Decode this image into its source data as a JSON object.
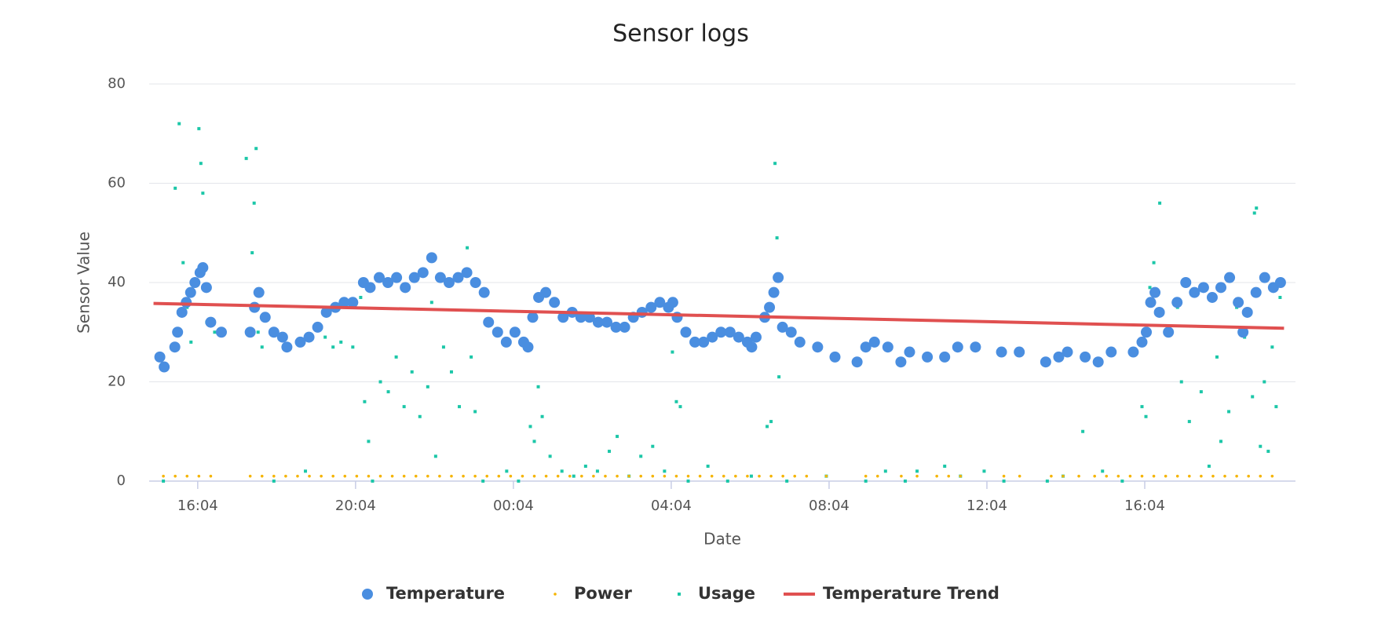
{
  "chart_data": {
    "type": "scatter",
    "title": "Sensor logs",
    "x_label": "Date",
    "y_label": "Sensor Value",
    "xlim": [
      14.84,
      43.89
    ],
    "ylim": [
      0,
      80
    ],
    "xticks": [
      {
        "value": 16.07,
        "label": "16:04"
      },
      {
        "value": 20.07,
        "label": "20:04"
      },
      {
        "value": 24.07,
        "label": "00:04"
      },
      {
        "value": 28.07,
        "label": "04:04"
      },
      {
        "value": 32.07,
        "label": "08:04"
      },
      {
        "value": 36.07,
        "label": "12:04"
      },
      {
        "value": 40.07,
        "label": "16:04"
      }
    ],
    "yticks": [
      0,
      20,
      40,
      60,
      80
    ],
    "grid": true,
    "legend": "bottom",
    "series": [
      {
        "name": "Temperature",
        "type": "scatter",
        "marker": "circle",
        "color": "#4a8ee0",
        "x": [
          15.11,
          15.22,
          15.49,
          15.56,
          15.67,
          15.78,
          15.89,
          16.0,
          16.13,
          16.2,
          16.29,
          16.4,
          16.67,
          17.4,
          17.51,
          17.62,
          17.78,
          18.0,
          18.22,
          18.33,
          18.67,
          18.89,
          19.11,
          19.33,
          19.56,
          19.78,
          20.0,
          20.27,
          20.44,
          20.67,
          20.89,
          21.11,
          21.33,
          21.56,
          21.78,
          22.0,
          22.22,
          22.44,
          22.67,
          22.89,
          23.11,
          23.33,
          23.44,
          23.67,
          23.89,
          24.11,
          24.33,
          24.44,
          24.56,
          24.71,
          24.89,
          25.11,
          25.33,
          25.56,
          25.78,
          26.0,
          26.22,
          26.44,
          26.67,
          26.89,
          27.11,
          27.33,
          27.56,
          27.78,
          28.0,
          28.11,
          28.22,
          28.44,
          28.67,
          28.89,
          29.11,
          29.33,
          29.56,
          29.78,
          30.0,
          30.11,
          30.22,
          30.44,
          30.56,
          30.67,
          30.78,
          30.89,
          31.11,
          31.33,
          31.78,
          32.22,
          32.78,
          33.0,
          33.22,
          33.56,
          33.89,
          34.11,
          34.56,
          35.0,
          35.33,
          35.78,
          36.44,
          36.89,
          37.56,
          37.89,
          38.11,
          38.56,
          38.89,
          39.22,
          39.78,
          40.0,
          40.11,
          40.22,
          40.33,
          40.44,
          40.67,
          40.89,
          41.11,
          41.33,
          41.56,
          41.78,
          42.0,
          42.22,
          42.44,
          42.56,
          42.67,
          42.89,
          43.11,
          43.33,
          43.51
        ],
        "values": [
          25,
          23,
          27,
          30,
          34,
          36,
          38,
          40,
          42,
          43,
          39,
          32,
          30,
          30,
          35,
          38,
          33,
          30,
          29,
          27,
          28,
          29,
          31,
          34,
          35,
          36,
          36,
          40,
          39,
          41,
          40,
          41,
          39,
          41,
          42,
          45,
          41,
          40,
          41,
          42,
          40,
          38,
          32,
          30,
          28,
          30,
          28,
          27,
          33,
          37,
          38,
          36,
          33,
          34,
          33,
          33,
          32,
          32,
          31,
          31,
          33,
          34,
          35,
          36,
          35,
          36,
          33,
          30,
          28,
          28,
          29,
          30,
          30,
          29,
          28,
          27,
          29,
          33,
          35,
          38,
          41,
          31,
          30,
          28,
          27,
          25,
          24,
          27,
          28,
          27,
          24,
          26,
          25,
          25,
          27,
          27,
          26,
          26,
          24,
          25,
          26,
          25,
          24,
          26,
          26,
          28,
          30,
          36,
          38,
          34,
          30,
          36,
          40,
          38,
          39,
          37,
          39,
          41,
          36,
          30,
          34,
          38,
          41,
          39,
          40
        ]
      },
      {
        "name": "Power",
        "type": "scatter",
        "marker": "dot",
        "color": "#f5b400",
        "x": [
          15.2,
          15.5,
          15.8,
          16.1,
          16.4,
          17.4,
          17.7,
          18.0,
          18.3,
          18.6,
          18.9,
          19.2,
          19.5,
          19.8,
          20.1,
          20.4,
          20.7,
          21.0,
          21.3,
          21.6,
          21.9,
          22.2,
          22.5,
          22.8,
          23.1,
          23.4,
          23.7,
          24.0,
          24.3,
          24.6,
          24.9,
          25.2,
          25.5,
          25.8,
          26.1,
          26.4,
          26.7,
          27.0,
          27.3,
          27.6,
          27.9,
          28.2,
          28.5,
          28.8,
          29.1,
          29.4,
          29.7,
          30.0,
          30.3,
          30.6,
          30.9,
          31.2,
          31.5,
          32.0,
          33.0,
          33.3,
          33.9,
          34.3,
          34.8,
          35.1,
          35.4,
          36.5,
          36.9,
          37.7,
          38.0,
          38.4,
          38.8,
          39.1,
          39.4,
          39.7,
          40.0,
          40.3,
          40.6,
          40.9,
          41.2,
          41.5,
          41.8,
          42.1,
          42.4,
          42.7,
          43.0,
          43.3
        ],
        "values": [
          1,
          1,
          1,
          1,
          1,
          1,
          1,
          1,
          1,
          1,
          1,
          1,
          1,
          1,
          1,
          1,
          1,
          1,
          1,
          1,
          1,
          1,
          1,
          1,
          1,
          1,
          1,
          1,
          1,
          1,
          1,
          1,
          1,
          1,
          1,
          1,
          1,
          1,
          1,
          1,
          1,
          1,
          1,
          1,
          1,
          1,
          1,
          1,
          1,
          1,
          1,
          1,
          1,
          1,
          1,
          1,
          1,
          1,
          1,
          1,
          1,
          1,
          1,
          1,
          1,
          1,
          1,
          1,
          1,
          1,
          1,
          1,
          1,
          1,
          1,
          1,
          1,
          1,
          1,
          1,
          1,
          1
        ]
      },
      {
        "name": "Usage",
        "type": "scatter",
        "marker": "square",
        "color": "#1cc7a8",
        "x": [
          15.2,
          15.5,
          15.6,
          15.7,
          15.8,
          15.9,
          16.0,
          16.1,
          16.15,
          16.2,
          16.3,
          16.5,
          17.3,
          17.45,
          17.5,
          17.55,
          17.6,
          17.7,
          18.0,
          18.8,
          19.3,
          19.5,
          19.7,
          20.0,
          20.2,
          20.3,
          20.4,
          20.5,
          20.7,
          20.9,
          21.1,
          21.3,
          21.5,
          21.7,
          21.9,
          22.0,
          22.1,
          22.3,
          22.5,
          22.7,
          22.9,
          23.0,
          23.1,
          23.3,
          23.9,
          24.2,
          24.5,
          24.6,
          24.7,
          24.8,
          25.0,
          25.3,
          25.6,
          25.9,
          26.2,
          26.5,
          26.7,
          27.0,
          27.3,
          27.6,
          27.9,
          28.1,
          28.2,
          28.3,
          28.5,
          29.0,
          29.5,
          30.1,
          30.5,
          30.6,
          30.7,
          30.75,
          30.8,
          31.0,
          32.0,
          33.0,
          33.5,
          34.0,
          34.3,
          35.0,
          35.4,
          36.0,
          36.5,
          37.6,
          38.0,
          38.5,
          39.0,
          39.5,
          40.0,
          40.1,
          40.2,
          40.3,
          40.45,
          40.6,
          40.9,
          41.0,
          41.2,
          41.5,
          41.7,
          41.9,
          42.0,
          42.2,
          42.4,
          42.6,
          42.8,
          42.85,
          42.9,
          43.0,
          43.1,
          43.2,
          43.3,
          43.4,
          43.5
        ],
        "values": [
          0,
          59,
          72,
          44,
          35,
          28,
          40,
          71,
          64,
          58,
          32,
          30,
          65,
          46,
          56,
          67,
          30,
          27,
          0,
          2,
          29,
          27,
          28,
          27,
          37,
          16,
          8,
          0,
          20,
          18,
          25,
          15,
          22,
          13,
          19,
          36,
          5,
          27,
          22,
          15,
          47,
          25,
          14,
          0,
          2,
          0,
          11,
          8,
          19,
          13,
          5,
          2,
          1,
          3,
          2,
          6,
          9,
          1,
          5,
          7,
          2,
          26,
          16,
          15,
          0,
          3,
          0,
          1,
          11,
          12,
          64,
          49,
          21,
          0,
          1,
          0,
          2,
          0,
          2,
          3,
          1,
          2,
          0,
          0,
          1,
          10,
          2,
          0,
          15,
          13,
          39,
          44,
          56,
          30,
          35,
          20,
          12,
          18,
          3,
          25,
          8,
          14,
          35,
          29,
          17,
          54,
          55,
          7,
          20,
          6,
          27,
          15,
          37
        ]
      },
      {
        "name": "Temperature Trend",
        "type": "line",
        "color": "#e05050",
        "x": [
          14.95,
          43.6
        ],
        "values": [
          35.8,
          30.8
        ]
      }
    ]
  }
}
